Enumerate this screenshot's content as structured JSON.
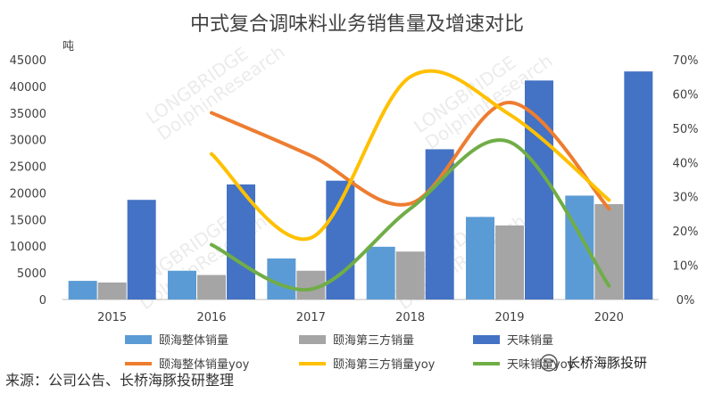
{
  "chart_data": {
    "type": "bar+line",
    "title": "中式复合调味料业务销售量及增速对比",
    "y_left_unit": "吨",
    "categories": [
      "2015",
      "2016",
      "2017",
      "2018",
      "2019",
      "2020"
    ],
    "y_left_ticks": [
      "0",
      "5000",
      "10000",
      "15000",
      "20000",
      "25000",
      "30000",
      "35000",
      "40000",
      "45000"
    ],
    "y_right_ticks": [
      "0%",
      "10%",
      "20%",
      "30%",
      "40%",
      "50%",
      "60%",
      "70%"
    ],
    "ylim_left": [
      0,
      45000
    ],
    "ylim_right": [
      0,
      70
    ],
    "bar_series": [
      {
        "name": "颐海整体销量",
        "color": "#5b9bd5",
        "values": [
          3500,
          5400,
          7700,
          9900,
          15500,
          19500
        ]
      },
      {
        "name": "颐海第三方销量",
        "color": "#a5a5a5",
        "values": [
          3200,
          4600,
          5400,
          9000,
          13900,
          17900
        ]
      },
      {
        "name": "天味销量",
        "color": "#4472c4",
        "values": [
          18700,
          21600,
          22300,
          28200,
          41100,
          42800
        ]
      }
    ],
    "line_series": [
      {
        "name": "颐海整体销量yoy",
        "color": "#ed7d31",
        "values": [
          null,
          54.5,
          42.0,
          28.0,
          57.5,
          26.5
        ]
      },
      {
        "name": "颐海第三方销量yoy",
        "color": "#ffc000",
        "values": [
          null,
          42.5,
          18.0,
          65.0,
          54.0,
          29.0
        ]
      },
      {
        "name": "天味销量yoy",
        "color": "#70ad47",
        "values": [
          null,
          16.0,
          3.0,
          26.5,
          46.0,
          4.0
        ]
      }
    ],
    "grid": false,
    "legend_position": "bottom"
  },
  "footer": {
    "source": "来源：公司公告、长桥海豚投研整理"
  },
  "brand": {
    "text": "长桥海豚投研"
  },
  "watermark": {
    "line1": "LONGBRIDGE",
    "line2": "DolphinResearch"
  }
}
